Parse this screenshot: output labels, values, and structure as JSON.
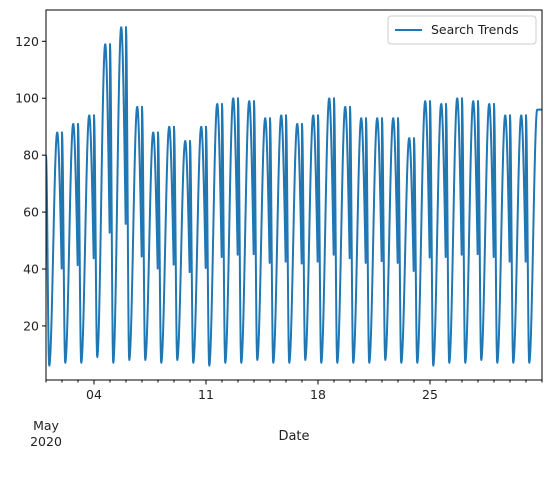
{
  "chart_data": {
    "type": "line",
    "title": "",
    "xlabel": "Date",
    "ylabel": "",
    "x_range": [
      "2020-05-01",
      "2020-06-01"
    ],
    "ylim": [
      1,
      131
    ],
    "grid": false,
    "legend_position": "top-right",
    "x_ticks": [
      {
        "date": "2020-05-04",
        "label": "04"
      },
      {
        "date": "2020-05-11",
        "label": "11"
      },
      {
        "date": "2020-05-18",
        "label": "18"
      },
      {
        "date": "2020-05-25",
        "label": "25"
      }
    ],
    "x_minor_dates": [
      "2020-05-01",
      "2020-05-02",
      "2020-05-03",
      "2020-05-05",
      "2020-05-06",
      "2020-05-07",
      "2020-05-08",
      "2020-05-09",
      "2020-05-10",
      "2020-05-12",
      "2020-05-13",
      "2020-05-14",
      "2020-05-15",
      "2020-05-16",
      "2020-05-17",
      "2020-05-19",
      "2020-05-20",
      "2020-05-21",
      "2020-05-22",
      "2020-05-23",
      "2020-05-24",
      "2020-05-26",
      "2020-05-27",
      "2020-05-28",
      "2020-05-29",
      "2020-05-30",
      "2020-05-31",
      "2020-06-01"
    ],
    "x_secondary_label": {
      "month": "May",
      "year": "2020"
    },
    "y_ticks": [
      20,
      40,
      60,
      80,
      100,
      120
    ],
    "series": [
      {
        "name": "Search Trends",
        "color": "#1f77b4",
        "daily_peaks": [
          88,
          91,
          94,
          119,
          125,
          97,
          88,
          90,
          85,
          90,
          98,
          100,
          99,
          93,
          94,
          91,
          94,
          100,
          97,
          93,
          93,
          93,
          86,
          99,
          98,
          100,
          99,
          98,
          94,
          94,
          96
        ],
        "daily_troughs": [
          6,
          7,
          7,
          9,
          7,
          8,
          8,
          7,
          8,
          7,
          6,
          7,
          7,
          8,
          7,
          7,
          8,
          7,
          7,
          7,
          7,
          8,
          7,
          7,
          6,
          7,
          7,
          8,
          7,
          7,
          7
        ],
        "start_value": 80,
        "end_value": 96
      }
    ]
  }
}
